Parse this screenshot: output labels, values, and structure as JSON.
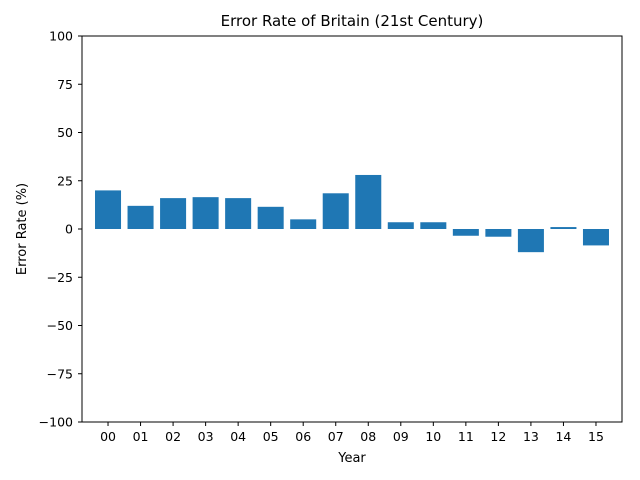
{
  "chart_data": {
    "type": "bar",
    "title": "Error Rate of Britain (21st Century)",
    "xlabel": "Year",
    "ylabel": "Error Rate (%)",
    "categories": [
      "00",
      "01",
      "02",
      "03",
      "04",
      "05",
      "06",
      "07",
      "08",
      "09",
      "10",
      "11",
      "12",
      "13",
      "14",
      "15"
    ],
    "values": [
      20,
      12,
      16,
      16.5,
      16,
      11.5,
      5,
      18.5,
      28,
      3.5,
      3.5,
      -3.5,
      -4,
      -12,
      1,
      -8.5
    ],
    "ylim": [
      -100,
      100
    ],
    "yticks": [
      "100",
      "75",
      "50",
      "25",
      "0",
      "−25",
      "−50",
      "−75",
      "−100"
    ],
    "grid": false,
    "bar_color": "#1f77b4"
  }
}
